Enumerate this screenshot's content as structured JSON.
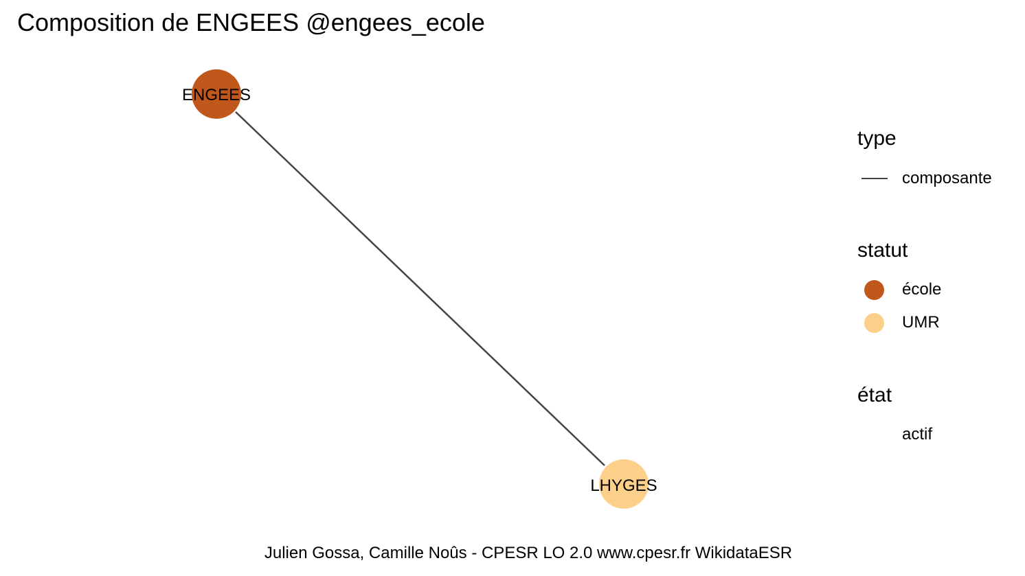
{
  "title": "Composition de ENGEES @engees_ecole",
  "graph": {
    "nodes": [
      {
        "id": "ENGEES",
        "label": "ENGEES",
        "statut": "école",
        "etat": "actif",
        "color": "#C0581C"
      },
      {
        "id": "LHYGES",
        "label": "LHYGES",
        "statut": "UMR",
        "etat": "actif",
        "color": "#FDD08A"
      }
    ],
    "edges": [
      {
        "from": "ENGEES",
        "to": "LHYGES",
        "type": "composante",
        "color": "#444444"
      }
    ]
  },
  "legend": {
    "type": {
      "title": "type",
      "items": [
        {
          "label": "composante",
          "color": "#444444"
        }
      ]
    },
    "statut": {
      "title": "statut",
      "items": [
        {
          "label": "école",
          "color": "#C0581C"
        },
        {
          "label": "UMR",
          "color": "#FDD08A"
        }
      ]
    },
    "etat": {
      "title": "état",
      "items": [
        {
          "label": "actif"
        }
      ]
    }
  },
  "caption": "Julien Gossa, Camille Noûs - CPESR LO 2.0 www.cpesr.fr WikidataESR"
}
